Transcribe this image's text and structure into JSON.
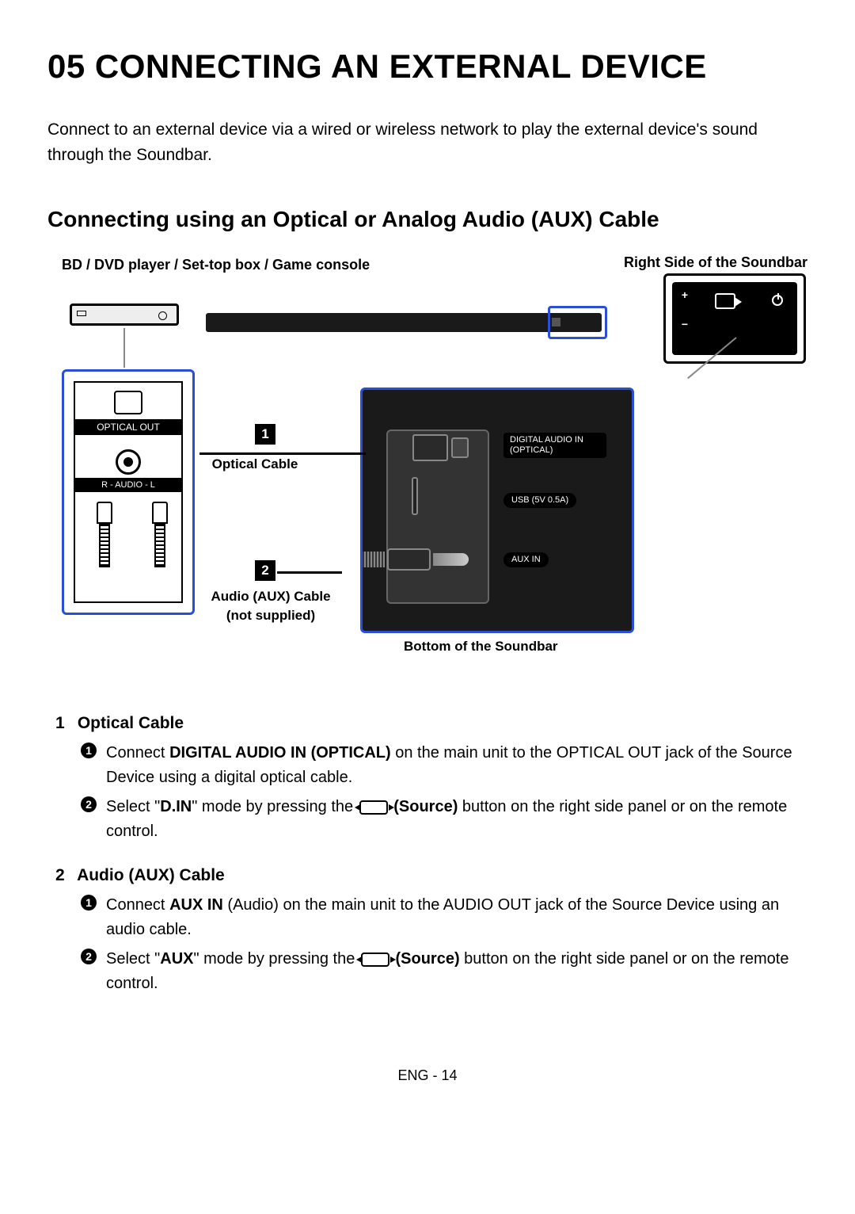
{
  "title": "05 CONNECTING AN EXTERNAL DEVICE",
  "intro": "Connect to an external device via a wired or wireless network to play the external device's sound through the Soundbar.",
  "section_title": "Connecting using an Optical or Analog Audio (AUX) Cable",
  "diagram": {
    "left_label": "BD / DVD player / Set-top box / Game console",
    "right_label": "Right Side of the Soundbar",
    "bottom_label": "Bottom of the Soundbar",
    "optical_out": "OPTICAL OUT",
    "audio_rl": "R - AUDIO - L",
    "digital_in": "DIGITAL AUDIO IN (OPTICAL)",
    "usb": "USB (5V 0.5A)",
    "aux_in": "AUX IN",
    "marker_1": "1",
    "marker_2": "2",
    "optical_cable_label": "Optical Cable",
    "aux_cable_label": "Audio (AUX) Cable (not supplied)"
  },
  "steps": {
    "s1": {
      "num": "1",
      "title": "Optical Cable",
      "a": {
        "pre": "Connect ",
        "bold": "DIGITAL AUDIO IN (OPTICAL)",
        "post": " on the main unit to the OPTICAL OUT jack of the Source Device using a digital optical cable."
      },
      "b": {
        "pre": "Select \"",
        "bold1": "D.IN",
        "mid": "\" mode by pressing the ",
        "bold2": "(Source)",
        "post": " button on the right side panel or on the remote control."
      }
    },
    "s2": {
      "num": "2",
      "title": "Audio (AUX) Cable",
      "a": {
        "pre": "Connect ",
        "bold": "AUX IN",
        "post": " (Audio) on the main unit to the AUDIO OUT jack of the Source Device using an audio cable."
      },
      "b": {
        "pre": "Select \"",
        "bold1": "AUX",
        "mid": "\" mode by pressing the ",
        "bold2": "(Source)",
        "post": " button on the right side panel or on the remote control."
      }
    }
  },
  "footer": "ENG - 14",
  "colors": {
    "highlight_blue": "#2a4fd6",
    "black": "#000000",
    "dark_panel": "#1a1a1a"
  }
}
